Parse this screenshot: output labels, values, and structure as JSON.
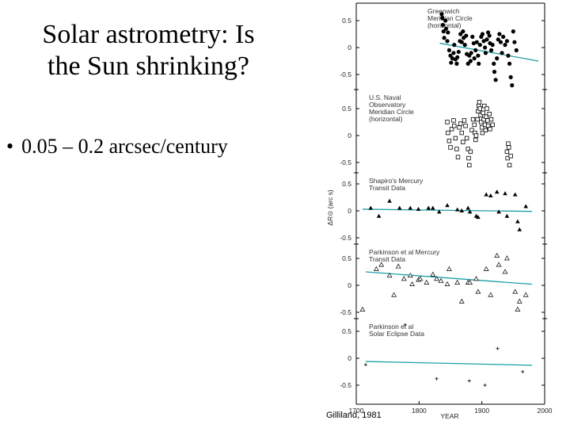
{
  "slide": {
    "title_line1": "Solar astrometry: Is",
    "title_line2": "the Sun shrinking?",
    "bullet_marker": "•",
    "bullet": "0.05 – 0.2 arcsec/century"
  },
  "colors": {
    "trend": "#1aa0a8",
    "ink": "#000000"
  },
  "chart_data": {
    "type": "scatter",
    "xlabel": "YEAR",
    "ylabel": "ΔR⊙ (arc s)",
    "xlim": [
      1700,
      2000
    ],
    "x_ticks": [
      "1700",
      "1800",
      "1900",
      "2000"
    ],
    "credit": "Gilliland, 1981",
    "panels": [
      {
        "name": "greenwich",
        "label_lines": [
          "Greenwich",
          "Meridian Circle",
          "(horizontal)"
        ],
        "marker": "filled-circle",
        "ylim": [
          -0.65,
          0.65
        ],
        "y_ticks": [
          "0.5",
          "0",
          "-0.5"
        ],
        "trend": {
          "x": [
            1833,
            1990
          ],
          "y": [
            0.08,
            -0.25
          ]
        },
        "points": [
          [
            1836,
            0.62
          ],
          [
            1837,
            0.55
          ],
          [
            1838,
            0.42
          ],
          [
            1839,
            0.3
          ],
          [
            1840,
            0.18
          ],
          [
            1842,
            0.5
          ],
          [
            1843,
            0.35
          ],
          [
            1845,
            0.12
          ],
          [
            1846,
            0.28
          ],
          [
            1848,
            -0.05
          ],
          [
            1850,
            -0.15
          ],
          [
            1851,
            -0.28
          ],
          [
            1853,
            -0.2
          ],
          [
            1855,
            -0.1
          ],
          [
            1856,
            0.05
          ],
          [
            1858,
            -0.22
          ],
          [
            1860,
            -0.3
          ],
          [
            1861,
            -0.18
          ],
          [
            1863,
            -0.08
          ],
          [
            1865,
            0.12
          ],
          [
            1866,
            0.25
          ],
          [
            1868,
            0.1
          ],
          [
            1870,
            0.3
          ],
          [
            1871,
            0.18
          ],
          [
            1873,
            0.05
          ],
          [
            1875,
            0.22
          ],
          [
            1876,
            -0.12
          ],
          [
            1878,
            -0.3
          ],
          [
            1880,
            -0.15
          ],
          [
            1882,
            -0.25
          ],
          [
            1883,
            -0.1
          ],
          [
            1885,
            0.2
          ],
          [
            1887,
            0.08
          ],
          [
            1888,
            -0.2
          ],
          [
            1890,
            -0.05
          ],
          [
            1892,
            0.1
          ],
          [
            1894,
            -0.15
          ],
          [
            1895,
            -0.3
          ],
          [
            1897,
            0.05
          ],
          [
            1899,
            0.2
          ],
          [
            1901,
            0.25
          ],
          [
            1903,
            0.12
          ],
          [
            1905,
            0.0
          ],
          [
            1906,
            -0.1
          ],
          [
            1908,
            0.15
          ],
          [
            1910,
            0.28
          ],
          [
            1912,
            0.22
          ],
          [
            1913,
            0.08
          ],
          [
            1915,
            -0.05
          ],
          [
            1917,
            0.05
          ],
          [
            1919,
            -0.3
          ],
          [
            1920,
            -0.45
          ],
          [
            1922,
            -0.6
          ],
          [
            1924,
            -0.2
          ],
          [
            1926,
            0.15
          ],
          [
            1928,
            0.25
          ],
          [
            1930,
            0.1
          ],
          [
            1932,
            -0.1
          ],
          [
            1934,
            0.2
          ],
          [
            1937,
            0.05
          ],
          [
            1940,
            0.12
          ],
          [
            1942,
            -0.15
          ],
          [
            1944,
            -0.3
          ],
          [
            1946,
            -0.55
          ],
          [
            1948,
            -0.7
          ],
          [
            1950,
            0.3
          ],
          [
            1952,
            0.1
          ],
          [
            1955,
            -0.05
          ]
        ]
      },
      {
        "name": "us-naval",
        "label_lines": [
          "U.S. Naval",
          "Observatory",
          "Meridian Circle",
          "(horizontal)"
        ],
        "marker": "open-square",
        "ylim": [
          -0.65,
          0.65
        ],
        "y_ticks": [
          "0.5",
          "0",
          "-0.5"
        ],
        "points": [
          [
            1845,
            0.25
          ],
          [
            1846,
            0.05
          ],
          [
            1848,
            -0.1
          ],
          [
            1850,
            -0.22
          ],
          [
            1852,
            0.12
          ],
          [
            1855,
            0.28
          ],
          [
            1856,
            0.18
          ],
          [
            1858,
            -0.05
          ],
          [
            1860,
            -0.25
          ],
          [
            1862,
            -0.4
          ],
          [
            1864,
            0.15
          ],
          [
            1866,
            0.22
          ],
          [
            1868,
            0.05
          ],
          [
            1870,
            -0.12
          ],
          [
            1872,
            0.28
          ],
          [
            1874,
            0.18
          ],
          [
            1876,
            -0.05
          ],
          [
            1878,
            -0.25
          ],
          [
            1879,
            -0.42
          ],
          [
            1880,
            -0.55
          ],
          [
            1882,
            -0.3
          ],
          [
            1884,
            0.1
          ],
          [
            1886,
            0.3
          ],
          [
            1888,
            0.2
          ],
          [
            1889,
            0.05
          ],
          [
            1890,
            -0.08
          ],
          [
            1891,
            0.0
          ],
          [
            1893,
            0.3
          ],
          [
            1894,
            0.45
          ],
          [
            1895,
            0.55
          ],
          [
            1896,
            0.62
          ],
          [
            1897,
            0.5
          ],
          [
            1898,
            0.38
          ],
          [
            1899,
            0.25
          ],
          [
            1900,
            0.15
          ],
          [
            1901,
            0.05
          ],
          [
            1902,
            0.42
          ],
          [
            1903,
            0.3
          ],
          [
            1904,
            0.55
          ],
          [
            1905,
            0.2
          ],
          [
            1906,
            0.1
          ],
          [
            1907,
            0.35
          ],
          [
            1908,
            0.5
          ],
          [
            1909,
            0.28
          ],
          [
            1910,
            0.18
          ],
          [
            1912,
            0.4
          ],
          [
            1913,
            0.12
          ],
          [
            1915,
            0.3
          ],
          [
            1917,
            0.2
          ],
          [
            1940,
            -0.3
          ],
          [
            1941,
            -0.42
          ],
          [
            1942,
            -0.15
          ],
          [
            1943,
            -0.22
          ],
          [
            1944,
            -0.55
          ],
          [
            1946,
            -0.38
          ]
        ]
      },
      {
        "name": "shapiro",
        "label_lines": [
          "Shapiro's Mercury",
          "Transit Data"
        ],
        "marker": "filled-triangle",
        "ylim": [
          -0.65,
          0.65
        ],
        "y_ticks": [
          "0.5",
          "0",
          "-0.5"
        ],
        "trend": {
          "x": [
            1710,
            1980
          ],
          "y": [
            0.03,
            -0.01
          ]
        },
        "points": [
          [
            1723,
            0.05
          ],
          [
            1736,
            -0.1
          ],
          [
            1753,
            0.18
          ],
          [
            1769,
            0.05
          ],
          [
            1786,
            0.05
          ],
          [
            1799,
            0.03
          ],
          [
            1815,
            0.05
          ],
          [
            1822,
            0.05
          ],
          [
            1832,
            -0.02
          ],
          [
            1845,
            0.1
          ],
          [
            1861,
            0.02
          ],
          [
            1868,
            0.0
          ],
          [
            1878,
            0.05
          ],
          [
            1881,
            -0.02
          ],
          [
            1891,
            -0.1
          ],
          [
            1894,
            -0.12
          ],
          [
            1907,
            0.3
          ],
          [
            1914,
            0.28
          ],
          [
            1924,
            0.35
          ],
          [
            1927,
            -0.02
          ],
          [
            1937,
            0.32
          ],
          [
            1940,
            -0.1
          ],
          [
            1953,
            0.3
          ],
          [
            1957,
            -0.2
          ],
          [
            1960,
            -0.35
          ],
          [
            1970,
            0.08
          ]
        ]
      },
      {
        "name": "parkinson-mercury",
        "label_lines": [
          "Parkinson et al Mercury",
          "Transit Data"
        ],
        "marker": "open-triangle",
        "ylim": [
          -0.65,
          0.65
        ],
        "y_ticks": [
          "0.5",
          "0",
          "-0.5"
        ],
        "trend": {
          "x": [
            1715,
            1980
          ],
          "y": [
            0.25,
            0.02
          ]
        },
        "points": [
          [
            1710,
            -0.45
          ],
          [
            1732,
            0.3
          ],
          [
            1740,
            0.38
          ],
          [
            1753,
            0.18
          ],
          [
            1760,
            -0.18
          ],
          [
            1767,
            0.35
          ],
          [
            1776,
            0.12
          ],
          [
            1786,
            0.18
          ],
          [
            1789,
            0.02
          ],
          [
            1799,
            0.1
          ],
          [
            1802,
            0.12
          ],
          [
            1812,
            0.05
          ],
          [
            1822,
            0.2
          ],
          [
            1828,
            0.12
          ],
          [
            1835,
            0.08
          ],
          [
            1845,
            0.02
          ],
          [
            1848,
            0.3
          ],
          [
            1861,
            0.05
          ],
          [
            1868,
            -0.3
          ],
          [
            1878,
            0.05
          ],
          [
            1881,
            0.05
          ],
          [
            1891,
            0.12
          ],
          [
            1894,
            -0.12
          ],
          [
            1907,
            0.3
          ],
          [
            1914,
            -0.18
          ],
          [
            1924,
            0.55
          ],
          [
            1927,
            0.38
          ],
          [
            1937,
            0.25
          ],
          [
            1940,
            0.5
          ],
          [
            1953,
            -0.12
          ],
          [
            1957,
            -0.45
          ],
          [
            1960,
            -0.3
          ],
          [
            1970,
            -0.18
          ]
        ]
      },
      {
        "name": "parkinson-eclipse",
        "label_lines": [
          "Parkinson et al",
          "Solar Eclipse Data"
        ],
        "marker": "plus",
        "ylim": [
          -0.65,
          0.65
        ],
        "y_ticks": [
          "0.5",
          "0",
          "-0.5"
        ],
        "trend": {
          "x": [
            1715,
            1980
          ],
          "y": [
            -0.06,
            -0.13
          ]
        },
        "points": [
          [
            1715,
            -0.12
          ],
          [
            1778,
            0.62
          ],
          [
            1828,
            -0.38
          ],
          [
            1880,
            -0.42
          ],
          [
            1905,
            -0.5
          ],
          [
            1925,
            0.18
          ],
          [
            1965,
            -0.25
          ]
        ]
      }
    ]
  }
}
